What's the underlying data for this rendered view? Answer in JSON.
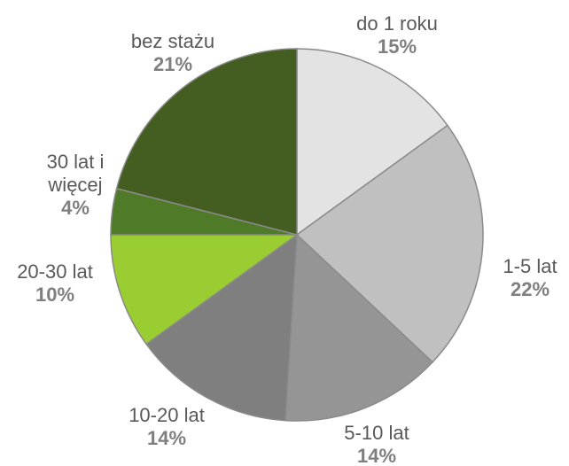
{
  "chart_data": {
    "type": "pie",
    "categories": [
      "do 1 roku",
      "1-5 lat",
      "5-10 lat",
      "10-20 lat",
      "20-30 lat",
      "30 lat i więcej",
      "bez stażu"
    ],
    "values": [
      15,
      22,
      14,
      14,
      10,
      4,
      21
    ],
    "value_labels": [
      "15%",
      "22%",
      "14%",
      "14%",
      "10%",
      "4%",
      "21%"
    ],
    "colors": [
      "#e3e3e3",
      "#c0c0c0",
      "#959595",
      "#7f7f7f",
      "#9acd32",
      "#4f7a28",
      "#435e20"
    ]
  }
}
